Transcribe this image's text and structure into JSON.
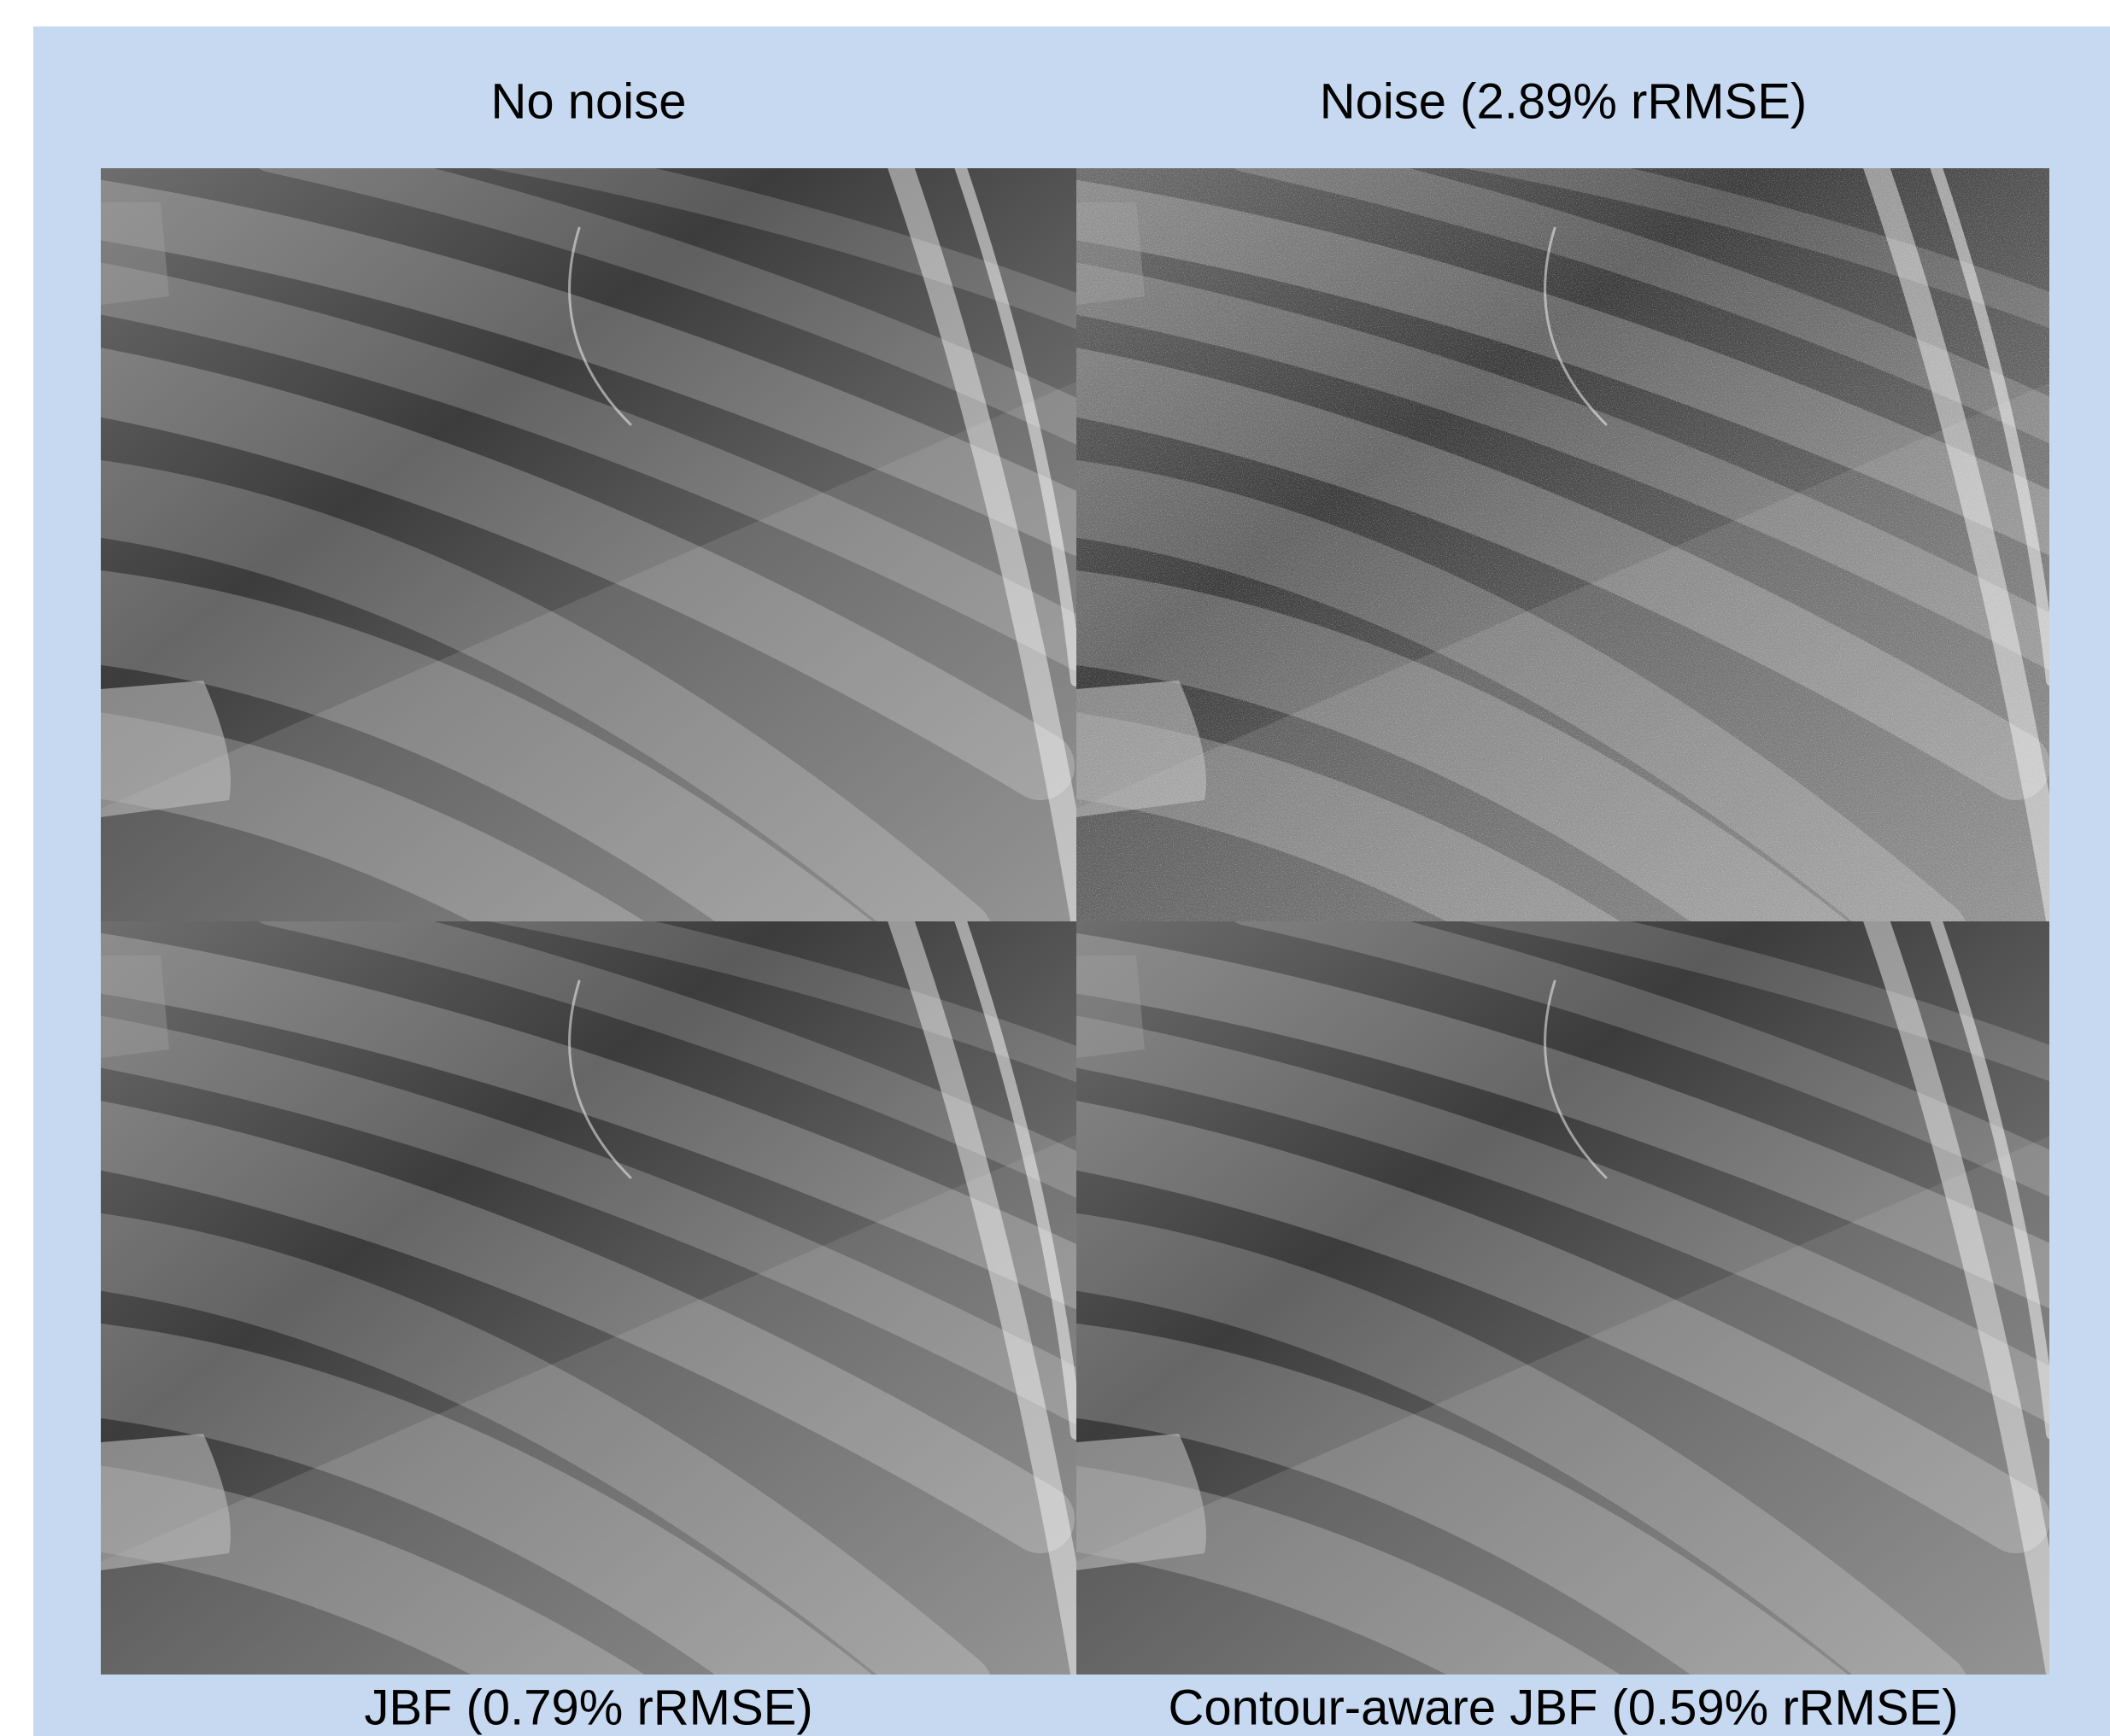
{
  "panels": [
    {
      "label": "No noise"
    },
    {
      "label": "Noise (2.89% rRMSE)"
    },
    {
      "label": "JBF (0.79% rRMSE)"
    },
    {
      "label": "Contour-aware JBF (0.59% rRMSE)"
    }
  ]
}
